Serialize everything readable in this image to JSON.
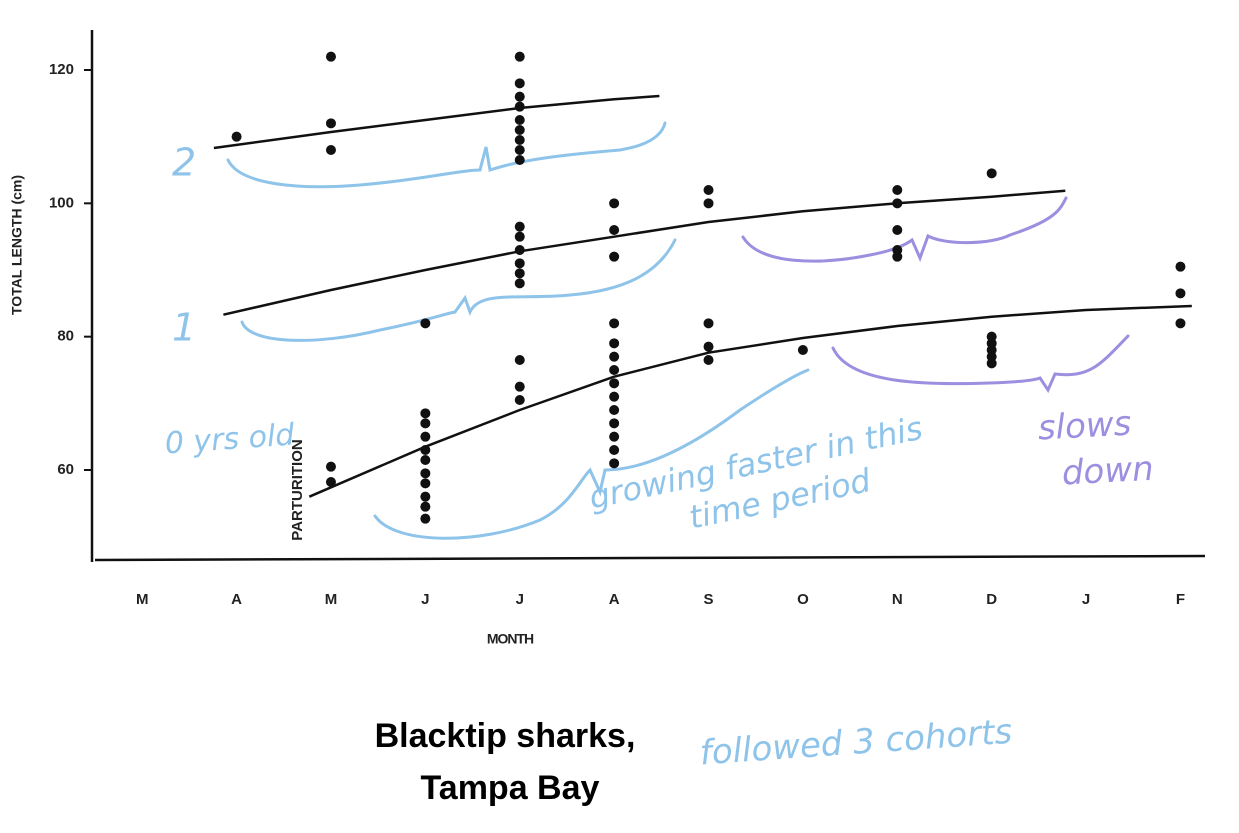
{
  "chart_data": {
    "type": "scatter",
    "title": [
      "Blacktip sharks,",
      "Tampa Bay"
    ],
    "x_label": "MONTH",
    "y_label": "TOTAL LENGTH (cm)",
    "xlim": [
      -0.5,
      11.26
    ],
    "ylim": [
      46.5,
      126
    ],
    "xticks": [
      {
        "value": 0,
        "label": "M"
      },
      {
        "value": 1,
        "label": "A"
      },
      {
        "value": 2,
        "label": "M"
      },
      {
        "value": 3,
        "label": "J"
      },
      {
        "value": 4,
        "label": "J"
      },
      {
        "value": 5,
        "label": "A"
      },
      {
        "value": 6,
        "label": "S"
      },
      {
        "value": 7,
        "label": "O"
      },
      {
        "value": 8,
        "label": "N"
      },
      {
        "value": 9,
        "label": "D"
      },
      {
        "value": 10,
        "label": "J"
      },
      {
        "value": 11,
        "label": "F"
      }
    ],
    "yticks": [
      60,
      80,
      100,
      120
    ],
    "grid": false,
    "annotation": "PARTURITION",
    "handwritten_notes": [
      {
        "text": "2",
        "color": "#8ec3ea"
      },
      {
        "text": "1",
        "color": "#8ec3ea"
      },
      {
        "text": "0 yrs old",
        "color": "#8ec3ea"
      },
      {
        "text": "growing faster in this",
        "color": "#8ec3ea"
      },
      {
        "text": "time period",
        "color": "#8ec3ea"
      },
      {
        "text": "slows",
        "color": "#9c8fe0"
      },
      {
        "text": "down",
        "color": "#9c8fe0"
      },
      {
        "text": "followed 3 cohorts",
        "color": "#8ec3ea"
      }
    ],
    "series": [
      {
        "style": "points",
        "color": "#111",
        "x": [
          1,
          2,
          2,
          2,
          2,
          2,
          3,
          3,
          3,
          3,
          3,
          3,
          3,
          3,
          3,
          3,
          3,
          4,
          4,
          4,
          4,
          4,
          4,
          4,
          4,
          4,
          4,
          4,
          4,
          4,
          4,
          4,
          4,
          4,
          4,
          5,
          5,
          5,
          5,
          5,
          5,
          5,
          5,
          5,
          5,
          5,
          5,
          5,
          5,
          6,
          6,
          6,
          6,
          6,
          7,
          8,
          8,
          8,
          8,
          8,
          9,
          9,
          9,
          9,
          9,
          9,
          11,
          11,
          11
        ],
        "values": [
          110,
          122,
          112,
          108,
          60.5,
          58.2,
          82,
          68.5,
          67,
          65,
          63,
          61.5,
          59.5,
          58,
          56,
          54.5,
          52.7,
          122,
          118,
          116,
          114.5,
          112.5,
          111,
          109.5,
          108,
          106.5,
          96.5,
          95,
          93,
          91,
          89.5,
          88,
          76.5,
          72.5,
          70.5,
          100,
          96,
          92,
          82,
          79,
          77,
          75,
          73,
          71,
          69,
          67,
          65,
          63,
          61,
          102,
          100,
          82,
          78.5,
          76.5,
          78,
          102,
          100,
          96,
          93,
          92,
          104.5,
          80,
          79,
          78,
          77,
          76,
          90.5,
          86.5,
          82
        ]
      },
      {
        "style": "line",
        "color": "#111",
        "x": [
          0.76,
          2,
          3,
          4,
          5,
          5.48
        ],
        "values": [
          108.3,
          110.7,
          112.5,
          114.3,
          115.6,
          116.1
        ]
      },
      {
        "style": "line",
        "color": "#111",
        "x": [
          0.86,
          2,
          3,
          4,
          5,
          6,
          7,
          8,
          9,
          9.78
        ],
        "values": [
          83.3,
          87,
          90,
          92.8,
          95,
          97.2,
          98.8,
          100,
          101,
          101.9
        ]
      },
      {
        "style": "line",
        "color": "#111",
        "x": [
          1.77,
          3,
          4,
          5,
          6,
          7,
          8,
          9,
          10,
          11.12
        ],
        "values": [
          56,
          63.5,
          69,
          74,
          77.6,
          79.8,
          81.6,
          83,
          84,
          84.6
        ]
      }
    ]
  }
}
